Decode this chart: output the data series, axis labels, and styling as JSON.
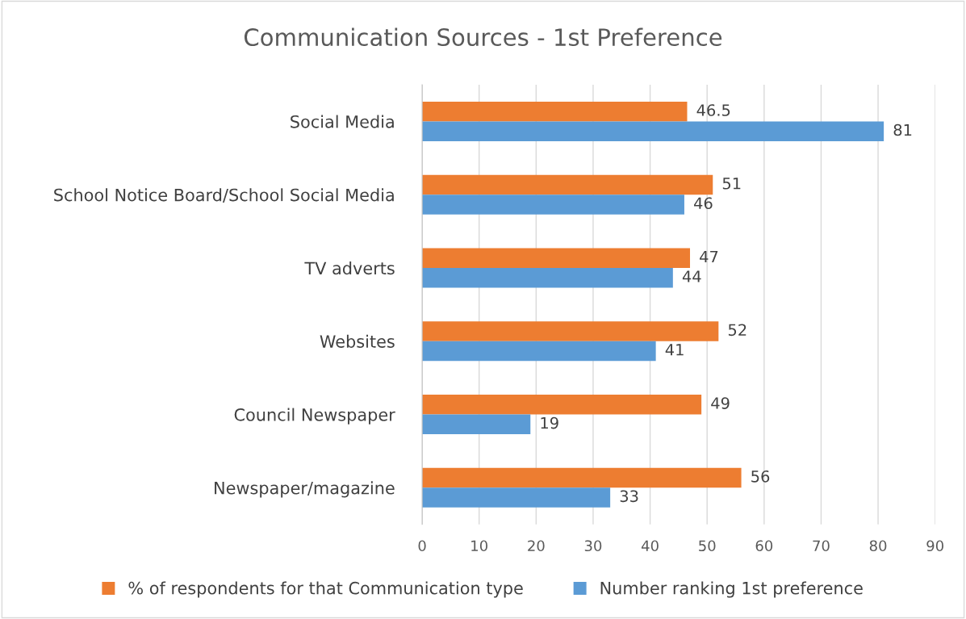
{
  "chart_data": {
    "type": "bar",
    "orientation": "horizontal",
    "title": "Communication Sources - 1st Preference",
    "categories": [
      "Social Media",
      "School Notice Board/School Social Media",
      "TV adverts",
      "Websites",
      "Council Newspaper",
      "Newspaper/magazine"
    ],
    "series": [
      {
        "name": "% of respondents for that Communication type",
        "color": "#ed7d31",
        "values": [
          46.5,
          51,
          47,
          52,
          49,
          56
        ]
      },
      {
        "name": "Number ranking 1st preference",
        "color": "#5b9bd5",
        "values": [
          81,
          46,
          44,
          41,
          19,
          33
        ]
      }
    ],
    "xlim": [
      0,
      90
    ],
    "xticks": [
      0,
      10,
      20,
      30,
      40,
      50,
      60,
      70,
      80,
      90
    ],
    "grid": "x",
    "legend": "bottom",
    "data_labels": true
  }
}
